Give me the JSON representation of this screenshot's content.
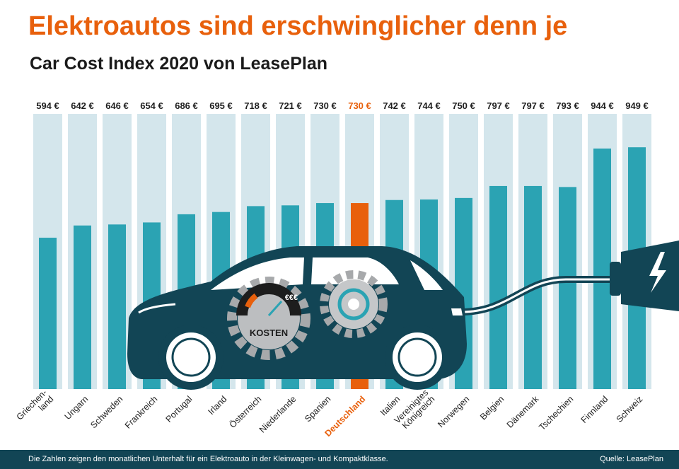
{
  "title": "Elektroautos sind erschwinglicher denn je",
  "subtitle": "Car Cost Index 2020 von LeasePlan",
  "chart_data": {
    "type": "bar",
    "categories": [
      [
        "Griechen-",
        "land"
      ],
      [
        "Ungarn"
      ],
      [
        "Schweden"
      ],
      [
        "Frankreich"
      ],
      [
        "Portugal"
      ],
      [
        "Irland"
      ],
      [
        "Österreich"
      ],
      [
        "Niederlande"
      ],
      [
        "Spanien"
      ],
      [
        "Deutschland"
      ],
      [
        "Italien"
      ],
      [
        "Vereinigtes",
        "Königreich"
      ],
      [
        "Norwegen"
      ],
      [
        "Belgien"
      ],
      [
        "Dänemark"
      ],
      [
        "Tschechien"
      ],
      [
        "Finnland"
      ],
      [
        "Schweiz"
      ]
    ],
    "values": [
      594,
      642,
      646,
      654,
      686,
      695,
      718,
      721,
      730,
      730,
      742,
      744,
      750,
      797,
      797,
      793,
      944,
      949
    ],
    "value_labels": [
      "594 €",
      "642 €",
      "646 €",
      "654 €",
      "686 €",
      "695 €",
      "718 €",
      "721 €",
      "730 €",
      "730 €",
      "742 €",
      "744 €",
      "750 €",
      "797 €",
      "797 €",
      "793 €",
      "944 €",
      "949 €"
    ],
    "highlight_index": 9,
    "ylim": [
      0,
      1080
    ],
    "colors": {
      "bar": "#2ba3b3",
      "highlight": "#e8600c",
      "track": "#d4e6ec",
      "car": "#124555",
      "label": "#1f1f1f"
    }
  },
  "illustration": {
    "gauge_label": "KOSTEN",
    "gauge_symbols": "€€€"
  },
  "footer": {
    "note": "Die Zahlen zeigen den monatlichen Unterhalt für ein Elektroauto in der Kleinwagen- und Kompaktklasse.",
    "source": "Quelle: LeasePlan"
  }
}
